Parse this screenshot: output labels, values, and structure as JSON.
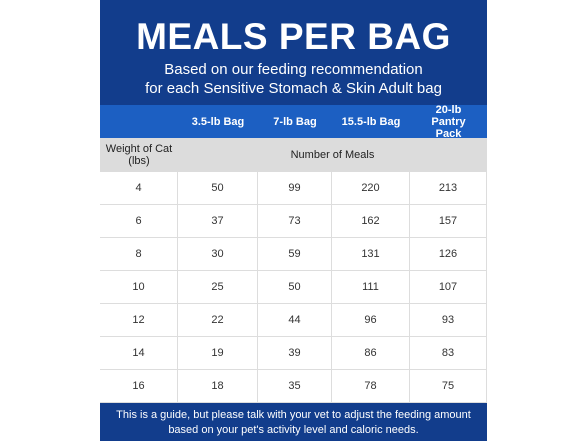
{
  "title": "MEALS PER BAG",
  "subtitle": [
    "Based on our feeding recommendation",
    "for each Sensitive Stomach & Skin Adult bag"
  ],
  "table": {
    "headers": [
      "3.5-lb Bag",
      "7-lb Bag",
      "15.5-lb Bag",
      "20-lb Pantry Pack"
    ],
    "row_header": "Weight of Cat (lbs)",
    "span_header": "Number of Meals",
    "rows": [
      [
        4,
        50,
        99,
        220,
        213
      ],
      [
        6,
        37,
        73,
        162,
        157
      ],
      [
        8,
        30,
        59,
        131,
        126
      ],
      [
        10,
        25,
        50,
        111,
        107
      ],
      [
        12,
        22,
        44,
        96,
        93
      ],
      [
        14,
        19,
        39,
        86,
        83
      ],
      [
        16,
        18,
        35,
        78,
        75
      ]
    ]
  },
  "footer": [
    "This is a guide, but please talk with your vet to adjust the feeding amount",
    "based on your pet's activity level and caloric needs."
  ]
}
